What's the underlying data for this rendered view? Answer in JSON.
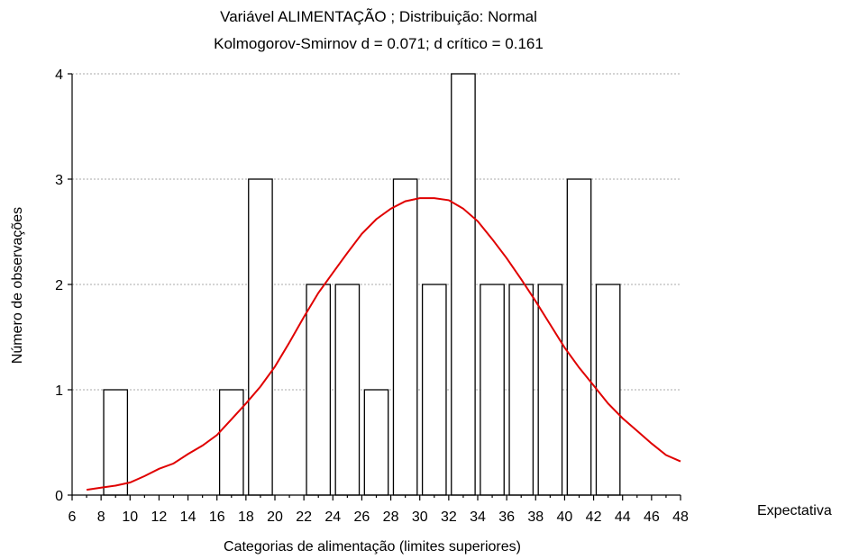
{
  "chart_data": {
    "type": "bar",
    "title": "Variável ALIMENTAÇÃO ; Distribuição: Normal",
    "subtitle": "Kolmogorov-Smirnov d = 0.071; d crítico = 0.161",
    "xlabel": "Categorias de alimentação (limites superiores)",
    "ylabel": "Número de observações",
    "legend_label": "Expectativa",
    "xlim": [
      6,
      48
    ],
    "ylim": [
      0,
      4
    ],
    "x_ticks": [
      6,
      8,
      10,
      12,
      14,
      16,
      18,
      20,
      22,
      24,
      26,
      28,
      30,
      32,
      34,
      36,
      38,
      40,
      42,
      44,
      46,
      48
    ],
    "y_ticks": [
      0,
      1,
      2,
      3,
      4
    ],
    "grid": "horizontal dotted",
    "bars": [
      {
        "upper_limit": 10,
        "count": 1
      },
      {
        "upper_limit": 18,
        "count": 1
      },
      {
        "upper_limit": 20,
        "count": 3
      },
      {
        "upper_limit": 24,
        "count": 2
      },
      {
        "upper_limit": 26,
        "count": 2
      },
      {
        "upper_limit": 28,
        "count": 1
      },
      {
        "upper_limit": 30,
        "count": 3
      },
      {
        "upper_limit": 32,
        "count": 2
      },
      {
        "upper_limit": 34,
        "count": 4
      },
      {
        "upper_limit": 36,
        "count": 2
      },
      {
        "upper_limit": 38,
        "count": 2
      },
      {
        "upper_limit": 40,
        "count": 2
      },
      {
        "upper_limit": 42,
        "count": 3
      },
      {
        "upper_limit": 44,
        "count": 2
      }
    ],
    "expected_curve": {
      "color": "#e00000",
      "points": [
        [
          7.0,
          0.05
        ],
        [
          8.0,
          0.07
        ],
        [
          9.0,
          0.09
        ],
        [
          10.0,
          0.12
        ],
        [
          11.0,
          0.18
        ],
        [
          12.0,
          0.25
        ],
        [
          13.0,
          0.3
        ],
        [
          14.0,
          0.39
        ],
        [
          15.0,
          0.47
        ],
        [
          16.0,
          0.57
        ],
        [
          17.0,
          0.72
        ],
        [
          18.0,
          0.87
        ],
        [
          19.0,
          1.03
        ],
        [
          20.0,
          1.22
        ],
        [
          21.0,
          1.45
        ],
        [
          22.0,
          1.69
        ],
        [
          23.0,
          1.92
        ],
        [
          24.0,
          2.11
        ],
        [
          25.0,
          2.3
        ],
        [
          26.0,
          2.48
        ],
        [
          27.0,
          2.62
        ],
        [
          28.0,
          2.72
        ],
        [
          29.0,
          2.79
        ],
        [
          30.0,
          2.82
        ],
        [
          31.0,
          2.82
        ],
        [
          32.0,
          2.8
        ],
        [
          33.0,
          2.72
        ],
        [
          34.0,
          2.6
        ],
        [
          35.0,
          2.43
        ],
        [
          36.0,
          2.25
        ],
        [
          37.0,
          2.05
        ],
        [
          38.0,
          1.84
        ],
        [
          39.0,
          1.62
        ],
        [
          40.0,
          1.4
        ],
        [
          41.0,
          1.21
        ],
        [
          42.0,
          1.04
        ],
        [
          43.0,
          0.87
        ],
        [
          44.0,
          0.73
        ],
        [
          45.0,
          0.61
        ],
        [
          46.0,
          0.49
        ],
        [
          47.0,
          0.38
        ],
        [
          48.0,
          0.32
        ]
      ]
    }
  }
}
